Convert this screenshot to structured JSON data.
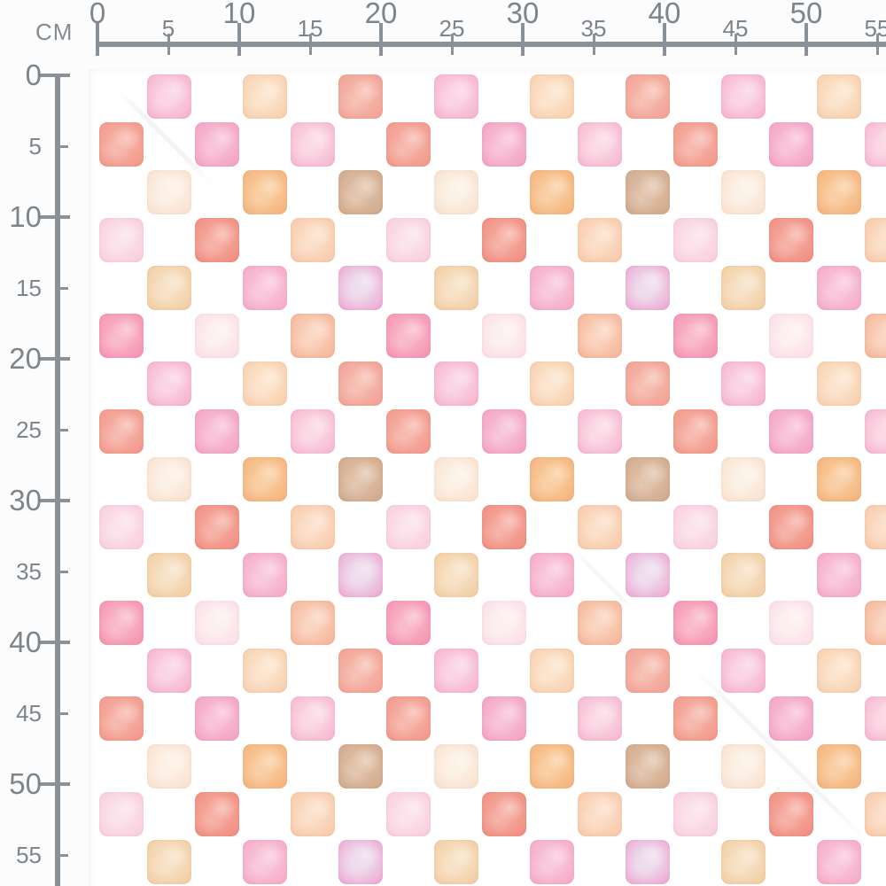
{
  "ruler": {
    "unit_label": "CM",
    "horizontal_ticks": [
      {
        "cm": 0,
        "label": "0",
        "major": true
      },
      {
        "cm": 5,
        "label": "5",
        "major": false
      },
      {
        "cm": 10,
        "label": "10",
        "major": true
      },
      {
        "cm": 15,
        "label": "15",
        "major": false
      },
      {
        "cm": 20,
        "label": "20",
        "major": true
      },
      {
        "cm": 25,
        "label": "25",
        "major": false
      },
      {
        "cm": 30,
        "label": "30",
        "major": true
      },
      {
        "cm": 35,
        "label": "35",
        "major": false
      },
      {
        "cm": 40,
        "label": "40",
        "major": true
      },
      {
        "cm": 45,
        "label": "45",
        "major": false
      },
      {
        "cm": 50,
        "label": "50",
        "major": true
      },
      {
        "cm": 55,
        "label": "55",
        "major": false
      }
    ],
    "vertical_ticks": [
      {
        "cm": 0,
        "label": "0",
        "major": true
      },
      {
        "cm": 5,
        "label": "5",
        "major": false
      },
      {
        "cm": 10,
        "label": "10",
        "major": true
      },
      {
        "cm": 15,
        "label": "15",
        "major": false
      },
      {
        "cm": 20,
        "label": "20",
        "major": true
      },
      {
        "cm": 25,
        "label": "25",
        "major": false
      },
      {
        "cm": 30,
        "label": "30",
        "major": true
      },
      {
        "cm": 35,
        "label": "35",
        "major": false
      },
      {
        "cm": 40,
        "label": "40",
        "major": true
      },
      {
        "cm": 45,
        "label": "45",
        "major": false
      },
      {
        "cm": 50,
        "label": "50",
        "major": true
      },
      {
        "cm": 55,
        "label": "55",
        "major": false
      }
    ]
  },
  "pattern": {
    "description": "watercolor checkerboard squares on white, 6x6 repeating tile",
    "palette": {
      "pink": {
        "base": "#F4A3C2",
        "center": "#FACDE0"
      },
      "peach": {
        "base": "#F6C4A0",
        "center": "#FBE0C5"
      },
      "coral": {
        "base": "#F0968A",
        "center": "#F5B4A6"
      },
      "coralRed": {
        "base": "#F08C7D",
        "center": "#F5ACA0"
      },
      "deepPink": {
        "base": "#F194BC",
        "center": "#F7B9D1"
      },
      "softPink": {
        "base": "#F4A5C6",
        "center": "#FAD3E1"
      },
      "blush": {
        "base": "#F8D8C2",
        "center": "#FCEFE2"
      },
      "orange": {
        "base": "#F3A76F",
        "center": "#F8C795"
      },
      "tan": {
        "base": "#C99F80",
        "center": "#DDBBA0"
      },
      "lightPink": {
        "base": "#F8C4D3",
        "center": "#FBDEE8"
      },
      "redCoral": {
        "base": "#EE8176",
        "center": "#F4A497"
      },
      "apricot": {
        "base": "#F6BF9D",
        "center": "#FBDAC1"
      },
      "beige": {
        "base": "#EFC493",
        "center": "#F6DDBE"
      },
      "rosePink": {
        "base": "#F39CBF",
        "center": "#F8C0D5"
      },
      "magenta": {
        "base": "#F08DC5",
        "center": "#ECD7EA"
      },
      "hotPink": {
        "base": "#F384A4",
        "center": "#F8AEC3"
      },
      "palePink": {
        "base": "#F9D5DE",
        "center": "#FDEDF0"
      },
      "salmon": {
        "base": "#F3A78A",
        "center": "#F9CDB5"
      }
    },
    "tile_rows": [
      [
        null,
        "pink",
        null,
        "peach",
        null,
        "coral"
      ],
      [
        "coralRed",
        null,
        "deepPink",
        null,
        "softPink",
        null
      ],
      [
        null,
        "blush",
        null,
        "orange",
        null,
        "tan"
      ],
      [
        "lightPink",
        null,
        "redCoral",
        null,
        "apricot",
        null
      ],
      [
        null,
        "beige",
        null,
        "rosePink",
        null,
        "magenta"
      ],
      [
        "hotPink",
        null,
        "palePink",
        null,
        "salmon",
        null
      ]
    ]
  },
  "colors": {
    "ruler_line": "#8A9198",
    "ruler_text": "#7D858C",
    "fabric_bg": "#FFFFFF",
    "page_bg": "#FCFCFD"
  }
}
